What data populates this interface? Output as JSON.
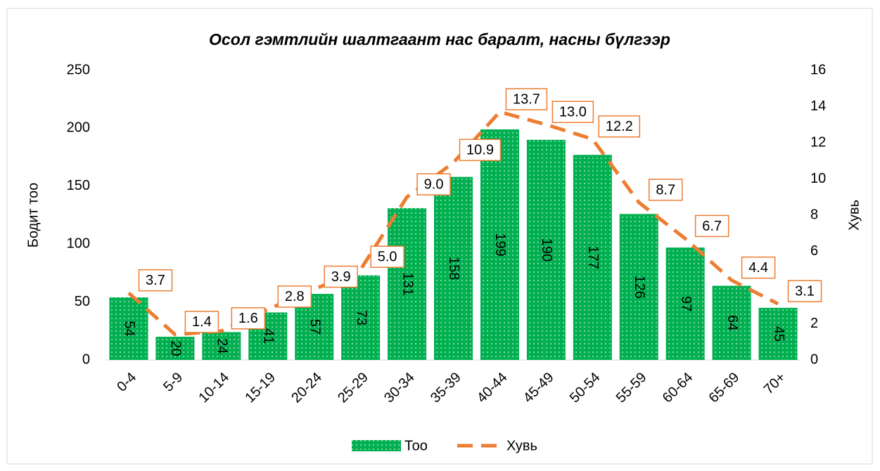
{
  "chart_data": {
    "type": "bar_line",
    "title": "Осол гэмтлийн шалтгаант нас баралт, насны бүлгээр",
    "y_label": "Бодит тоо",
    "y2_label": "Хувь",
    "categories": [
      "0-4",
      "5-9",
      "10-14",
      "15-19",
      "20-24",
      "25-29",
      "30-34",
      "35-39",
      "40-44",
      "45-49",
      "50-54",
      "55-59",
      "60-64",
      "65-69",
      "70+"
    ],
    "series": [
      {
        "name": "Тоо",
        "type": "bar",
        "color": "#00b050",
        "values": [
          54,
          20,
          24,
          41,
          57,
          73,
          131,
          158,
          199,
          190,
          177,
          126,
          97,
          64,
          45
        ]
      },
      {
        "name": "Хувь",
        "type": "line",
        "axis": "y2",
        "color": "#ed7d31",
        "values": [
          3.7,
          1.4,
          1.6,
          2.8,
          3.9,
          5.0,
          9.0,
          10.9,
          13.7,
          13.0,
          12.2,
          8.7,
          6.7,
          4.4,
          3.1
        ],
        "value_labels": [
          "3.7",
          "1.4",
          "1.6",
          "2.8",
          "3.9",
          "5.0",
          "9.0",
          "10.9",
          "13.7",
          "13.0",
          "12.2",
          "8.7",
          "6.7",
          "4.4",
          "3.1"
        ]
      }
    ],
    "ylim": [
      0,
      250
    ],
    "yticks": [
      0,
      50,
      100,
      150,
      200,
      250
    ],
    "y2lim": [
      0,
      16
    ],
    "y2ticks": [
      0,
      2,
      4,
      6,
      8,
      10,
      12,
      14,
      16
    ],
    "legend": "bottom"
  }
}
